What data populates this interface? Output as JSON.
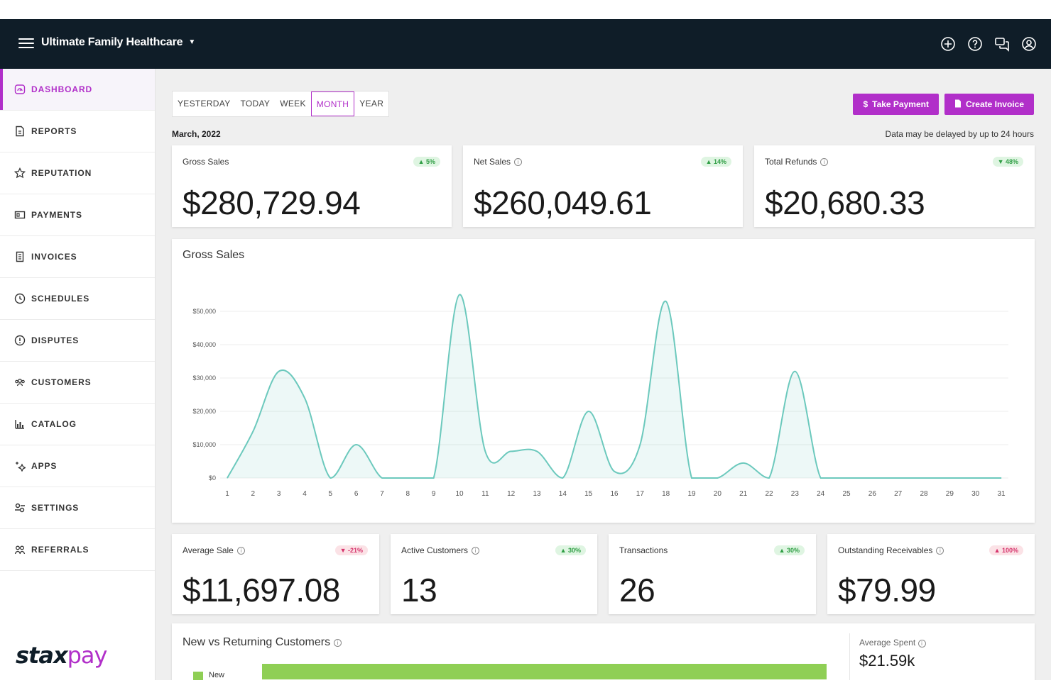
{
  "header": {
    "org_name": "Ultimate Family Healthcare"
  },
  "sidebar": {
    "items": [
      {
        "label": "DASHBOARD"
      },
      {
        "label": "REPORTS"
      },
      {
        "label": "REPUTATION"
      },
      {
        "label": "PAYMENTS"
      },
      {
        "label": "INVOICES"
      },
      {
        "label": "SCHEDULES"
      },
      {
        "label": "DISPUTES"
      },
      {
        "label": "CUSTOMERS"
      },
      {
        "label": "CATALOG"
      },
      {
        "label": "APPS"
      },
      {
        "label": "SETTINGS"
      },
      {
        "label": "REFERRALS"
      }
    ],
    "logo_part1": "stax",
    "logo_part2": "pay"
  },
  "periods": {
    "yesterday": "YESTERDAY",
    "today": "TODAY",
    "week": "WEEK",
    "month": "MONTH",
    "year": "YEAR",
    "selected": "MONTH"
  },
  "actions": {
    "take_payment": "Take Payment",
    "create_invoice": "Create Invoice"
  },
  "date_range": "March, 2022",
  "delay_note": "Data may be delayed by up to 24 hours",
  "summary": {
    "gross_sales": {
      "title": "Gross Sales",
      "value": "$280,729.94",
      "change": "▲ 5%"
    },
    "net_sales": {
      "title": "Net Sales",
      "value": "$260,049.61",
      "change": "▲ 14%"
    },
    "total_refunds": {
      "title": "Total Refunds",
      "value": "$20,680.33",
      "change": "▼ 48%"
    }
  },
  "chart_data": {
    "type": "area",
    "title": "Gross Sales",
    "x": [
      1,
      2,
      3,
      4,
      5,
      6,
      7,
      8,
      9,
      10,
      11,
      12,
      13,
      14,
      15,
      16,
      17,
      18,
      19,
      20,
      21,
      22,
      23,
      24,
      25,
      26,
      27,
      28,
      29,
      30,
      31
    ],
    "values": [
      0,
      14000,
      32000,
      24000,
      0,
      10000,
      0,
      0,
      0,
      55000,
      8000,
      8000,
      8000,
      0,
      20000,
      2000,
      10000,
      53000,
      0,
      0,
      4500,
      0,
      32000,
      0,
      0,
      0,
      0,
      0,
      0,
      0,
      0
    ],
    "y_ticks": [
      "$0",
      "$10,000",
      "$20,000",
      "$30,000",
      "$40,000",
      "$50,000"
    ],
    "ylim": [
      0,
      50000
    ],
    "grid": true,
    "color": "#6cc9bd"
  },
  "metrics": {
    "average_sale": {
      "title": "Average Sale",
      "value": "$11,697.08",
      "change": "▼ -21%"
    },
    "active_customers": {
      "title": "Active Customers",
      "value": "13",
      "change": "▲ 30%"
    },
    "transactions": {
      "title": "Transactions",
      "value": "26",
      "change": "▲ 30%"
    },
    "outstanding_receivables": {
      "title": "Outstanding Receivables",
      "value": "$79.99",
      "change": "▲ 100%"
    }
  },
  "new_vs_returning": {
    "title": "New vs Returning Customers",
    "legend_new": "New",
    "average_spent_label": "Average Spent",
    "average_spent_value": "$21.59k"
  },
  "colors": {
    "accent": "#b12fc9",
    "topbar": "#0f1d28",
    "chart": "#6cc9bd",
    "bar_new": "#8fcf55"
  }
}
